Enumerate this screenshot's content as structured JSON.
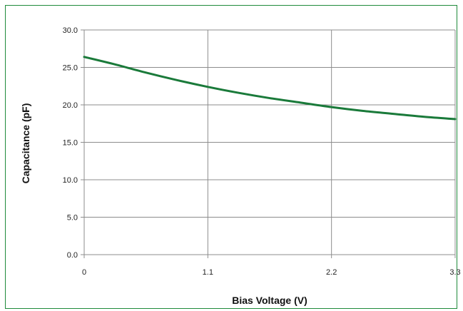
{
  "chart_data": {
    "type": "line",
    "title": "",
    "xlabel": "Bias Voltage (V)",
    "ylabel": "Capacitance (pF)",
    "xlim": [
      0,
      3.3
    ],
    "ylim": [
      0,
      30
    ],
    "x_ticks": [
      "0",
      "1.1",
      "2.2",
      "3.3"
    ],
    "y_ticks": [
      "0.0",
      "5.0",
      "10.0",
      "15.0",
      "20.0",
      "25.0",
      "30.0"
    ],
    "grid": true,
    "legend": "none",
    "series": [
      {
        "color": "#1a7a3a",
        "x": [
          0,
          0.275,
          0.55,
          0.825,
          1.1,
          1.375,
          1.65,
          1.925,
          2.2,
          2.475,
          2.75,
          3.025,
          3.3
        ],
        "y": [
          26.4,
          25.4,
          24.3,
          23.3,
          22.4,
          21.6,
          20.9,
          20.3,
          19.7,
          19.2,
          18.8,
          18.4,
          18.1
        ]
      }
    ]
  },
  "colors": {
    "frame_border": "#1e8a3a",
    "grid": "#8c8c8c",
    "line": "#1a7a3a"
  }
}
